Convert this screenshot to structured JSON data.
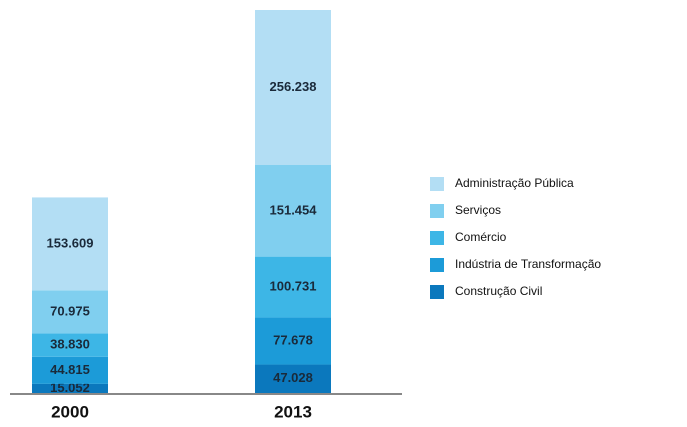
{
  "chart_data": {
    "type": "stacked-bar",
    "categories": [
      "2000",
      "2013"
    ],
    "series": [
      {
        "name": "Construção Civil",
        "color": "#0b78bd",
        "values": [
          15052,
          47028
        ],
        "value_labels": [
          "15.052",
          "47.028"
        ]
      },
      {
        "name": "Indústria de Transformação",
        "color": "#1c9bd8",
        "values": [
          44815,
          77678
        ],
        "value_labels": [
          "44.815",
          "77.678"
        ]
      },
      {
        "name": "Comércio",
        "color": "#3db6e6",
        "values": [
          38830,
          100731
        ],
        "value_labels": [
          "38.830",
          "100.731"
        ]
      },
      {
        "name": "Serviços",
        "color": "#80cfef",
        "values": [
          70975,
          151454
        ],
        "value_labels": [
          "70.975",
          "151.454"
        ]
      },
      {
        "name": "Administração Pública",
        "color": "#b3def4",
        "values": [
          153609,
          256238
        ],
        "value_labels": [
          "153.609",
          "256.238"
        ]
      }
    ]
  }
}
